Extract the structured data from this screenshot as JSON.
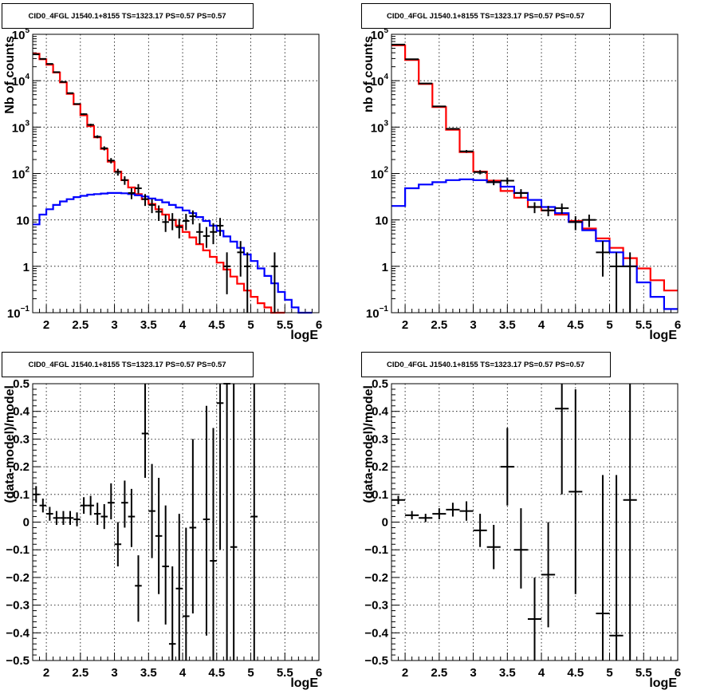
{
  "chart_data": [
    {
      "type": "step-histogram",
      "title": "CID0_4FGL J1540.1+8155 TS=1323.17 PS=0.57 PS=0.57",
      "xlabel": "logE",
      "ylabel": "Nb of counts",
      "xlim": [
        1.8,
        6.0
      ],
      "ylim": [
        0.1,
        100000
      ],
      "yscale": "log",
      "grid": true,
      "x_ticks": [
        "2",
        "2.5",
        "3",
        "3.5",
        "4",
        "4.5",
        "5",
        "5.5",
        "6"
      ],
      "y_ticks": [
        {
          "value": 0.1,
          "base": "10",
          "sup": "−1"
        },
        {
          "value": 1,
          "base": "1",
          "sup": ""
        },
        {
          "value": 10,
          "base": "10",
          "sup": ""
        },
        {
          "value": 100,
          "base": "10",
          "sup": "2"
        },
        {
          "value": 1000,
          "base": "10",
          "sup": "3"
        },
        {
          "value": 10000,
          "base": "10",
          "sup": "4"
        },
        {
          "value": 100000,
          "base": "10",
          "sup": "5"
        }
      ],
      "bin_width": 0.1,
      "series": [
        {
          "color": "#ff0000",
          "x_start": 1.8,
          "values": [
            38000,
            29000,
            22000,
            15000,
            9200,
            5200,
            3100,
            1800,
            1050,
            600,
            340,
            180,
            110,
            72,
            50,
            36,
            28,
            22,
            17,
            13,
            10,
            7.5,
            5.5,
            4.2,
            3.0,
            2.2,
            1.6,
            1.2,
            0.85,
            0.6,
            0.42,
            0.3,
            0.22,
            0.16,
            0.13,
            0.1,
            0.1
          ]
        },
        {
          "color": "#0000ff",
          "x_start": 1.8,
          "values": [
            8,
            13,
            17,
            21,
            25,
            28,
            31,
            33,
            35,
            36,
            37,
            38,
            38,
            37.5,
            36,
            34,
            32,
            29,
            27,
            24,
            21,
            18.5,
            16,
            14,
            11.5,
            9.5,
            7.5,
            5.8,
            4.4,
            3.4,
            2.5,
            1.8,
            1.3,
            0.9,
            0.62,
            0.43,
            0.28,
            0.19,
            0.13,
            0.1,
            0.1
          ]
        }
      ],
      "points": [
        {
          "x": 1.85,
          "y": 37000,
          "ylo": 36600,
          "yhi": 37400
        },
        {
          "x": 1.95,
          "y": 29500,
          "ylo": 29150,
          "yhi": 29850
        },
        {
          "x": 2.05,
          "y": 23000,
          "ylo": 22700,
          "yhi": 23300
        },
        {
          "x": 2.15,
          "y": 15300,
          "ylo": 15050,
          "yhi": 15550
        },
        {
          "x": 2.25,
          "y": 9400,
          "ylo": 9200,
          "yhi": 9600
        },
        {
          "x": 2.35,
          "y": 5400,
          "ylo": 5250,
          "yhi": 5550
        },
        {
          "x": 2.45,
          "y": 3150,
          "ylo": 3050,
          "yhi": 3250
        },
        {
          "x": 2.55,
          "y": 1900,
          "ylo": 1820,
          "yhi": 1980
        },
        {
          "x": 2.65,
          "y": 1120,
          "ylo": 1060,
          "yhi": 1180
        },
        {
          "x": 2.75,
          "y": 620,
          "ylo": 575,
          "yhi": 665
        },
        {
          "x": 2.85,
          "y": 350,
          "ylo": 315,
          "yhi": 385
        },
        {
          "x": 2.95,
          "y": 190,
          "ylo": 165,
          "yhi": 215
        },
        {
          "x": 3.05,
          "y": 108,
          "ylo": 90,
          "yhi": 126
        },
        {
          "x": 3.15,
          "y": 72,
          "ylo": 57,
          "yhi": 87
        },
        {
          "x": 3.25,
          "y": 38,
          "ylo": 28,
          "yhi": 48
        },
        {
          "x": 3.35,
          "y": 48,
          "ylo": 37,
          "yhi": 59
        },
        {
          "x": 3.45,
          "y": 28,
          "ylo": 20,
          "yhi": 36
        },
        {
          "x": 3.55,
          "y": 21,
          "ylo": 14,
          "yhi": 28
        },
        {
          "x": 3.65,
          "y": 15,
          "ylo": 9.5,
          "yhi": 20.5
        },
        {
          "x": 3.75,
          "y": 9,
          "ylo": 5.5,
          "yhi": 13
        },
        {
          "x": 3.85,
          "y": 10,
          "ylo": 6,
          "yhi": 14
        },
        {
          "x": 3.95,
          "y": 7,
          "ylo": 4,
          "yhi": 10.5
        },
        {
          "x": 4.05,
          "y": 9.5,
          "ylo": 6,
          "yhi": 13.5
        },
        {
          "x": 4.15,
          "y": 12,
          "ylo": 8,
          "yhi": 16
        },
        {
          "x": 4.25,
          "y": 5.5,
          "ylo": 3,
          "yhi": 8.5
        },
        {
          "x": 4.35,
          "y": 4.5,
          "ylo": 2.5,
          "yhi": 7
        },
        {
          "x": 4.45,
          "y": 5.5,
          "ylo": 3,
          "yhi": 8.5
        },
        {
          "x": 4.55,
          "y": 7.5,
          "ylo": 4.5,
          "yhi": 11
        },
        {
          "x": 4.65,
          "y": 1.0,
          "ylo": 0.25,
          "yhi": 2.0
        },
        {
          "x": 4.85,
          "y": 2.0,
          "ylo": 0.6,
          "yhi": 3.5
        },
        {
          "x": 4.95,
          "y": 1.0,
          "ylo": 0.1,
          "yhi": 2.0
        },
        {
          "x": 5.35,
          "y": 1.0,
          "ylo": 0.1,
          "yhi": 2.0
        }
      ]
    },
    {
      "type": "step-histogram",
      "title": "CID0_4FGL J1540.1+8155 TS=1323.17 PS=0.57 PS=0.57",
      "xlabel": "logE",
      "ylabel": "nb of counts",
      "xlim": [
        1.8,
        6.0
      ],
      "ylim": [
        0.1,
        100000
      ],
      "yscale": "log",
      "grid": true,
      "x_ticks": [
        "2",
        "2.5",
        "3",
        "3.5",
        "4",
        "4.5",
        "5",
        "5.5",
        "6"
      ],
      "y_ticks": [
        {
          "value": 0.1,
          "base": "10",
          "sup": "−1"
        },
        {
          "value": 1,
          "base": "1",
          "sup": ""
        },
        {
          "value": 10,
          "base": "10",
          "sup": ""
        },
        {
          "value": 100,
          "base": "10",
          "sup": "2"
        },
        {
          "value": 1000,
          "base": "10",
          "sup": "3"
        },
        {
          "value": 10000,
          "base": "10",
          "sup": "4"
        },
        {
          "value": 100000,
          "base": "10",
          "sup": "5"
        }
      ],
      "bin_width": 0.2,
      "series": [
        {
          "color": "#ff0000",
          "x_start": 1.8,
          "values": [
            58000,
            28000,
            8500,
            2700,
            880,
            290,
            110,
            70,
            42,
            30,
            19,
            16,
            13,
            9.5,
            6.5,
            4,
            2.5,
            1.5,
            0.9,
            0.5,
            0.3
          ]
        },
        {
          "color": "#0000ff",
          "x_start": 1.8,
          "values": [
            20,
            48,
            58,
            65,
            72,
            75,
            72,
            65,
            52,
            38,
            27,
            19,
            14,
            9,
            6,
            3.5,
            2,
            1.0,
            0.45,
            0.22,
            0.12
          ]
        }
      ],
      "points": [
        {
          "x": 1.9,
          "y": 60000,
          "ylo": 59000,
          "yhi": 61000
        },
        {
          "x": 2.1,
          "y": 29000,
          "ylo": 28700,
          "yhi": 29300
        },
        {
          "x": 2.3,
          "y": 8700,
          "ylo": 8500,
          "yhi": 8900
        },
        {
          "x": 2.5,
          "y": 2800,
          "ylo": 2700,
          "yhi": 2900
        },
        {
          "x": 2.7,
          "y": 920,
          "ylo": 880,
          "yhi": 960
        },
        {
          "x": 2.9,
          "y": 300,
          "ylo": 280,
          "yhi": 320
        },
        {
          "x": 3.1,
          "y": 107,
          "ylo": 96,
          "yhi": 118
        },
        {
          "x": 3.3,
          "y": 65,
          "ylo": 56,
          "yhi": 74
        },
        {
          "x": 3.5,
          "y": 70,
          "ylo": 58,
          "yhi": 82
        },
        {
          "x": 3.7,
          "y": 38,
          "ylo": 30,
          "yhi": 46
        },
        {
          "x": 3.9,
          "y": 19,
          "ylo": 14,
          "yhi": 24
        },
        {
          "x": 4.1,
          "y": 16,
          "ylo": 12,
          "yhi": 20
        },
        {
          "x": 4.3,
          "y": 18,
          "ylo": 13.5,
          "yhi": 22.5
        },
        {
          "x": 4.5,
          "y": 9,
          "ylo": 6,
          "yhi": 12
        },
        {
          "x": 4.7,
          "y": 10,
          "ylo": 7,
          "yhi": 13
        },
        {
          "x": 4.9,
          "y": 2,
          "ylo": 0.6,
          "yhi": 3.5
        },
        {
          "x": 5.1,
          "y": 1,
          "ylo": 0.1,
          "yhi": 2.0
        },
        {
          "x": 5.3,
          "y": 1,
          "ylo": 0.1,
          "yhi": 2.0
        }
      ]
    },
    {
      "type": "scatter-errorbars",
      "title": "CID0_4FGL J1540.1+8155 TS=1323.17 PS=0.57 PS=0.57",
      "xlabel": "logE",
      "ylabel": "(data-model)/model",
      "xlim": [
        1.8,
        6.0
      ],
      "ylim": [
        -0.5,
        0.5
      ],
      "yscale": "linear",
      "grid": true,
      "x_ticks": [
        "2",
        "2.5",
        "3",
        "3.5",
        "4",
        "4.5",
        "5",
        "5.5",
        "6"
      ],
      "y_ticks": [
        "−0.5",
        "−0.4",
        "−0.3",
        "−0.2",
        "−0.1",
        "0",
        "0.1",
        "0.2",
        "0.3",
        "0.4",
        "0.5"
      ],
      "bin_width": 0.1,
      "points": [
        {
          "x": 1.85,
          "y": 0.1,
          "ylo": 0.07,
          "yhi": 0.13
        },
        {
          "x": 1.95,
          "y": 0.06,
          "ylo": 0.035,
          "yhi": 0.085
        },
        {
          "x": 2.05,
          "y": 0.03,
          "ylo": 0.005,
          "yhi": 0.055
        },
        {
          "x": 2.15,
          "y": 0.015,
          "ylo": -0.01,
          "yhi": 0.04
        },
        {
          "x": 2.25,
          "y": 0.015,
          "ylo": -0.01,
          "yhi": 0.04
        },
        {
          "x": 2.35,
          "y": 0.015,
          "ylo": -0.01,
          "yhi": 0.04
        },
        {
          "x": 2.45,
          "y": 0.01,
          "ylo": -0.015,
          "yhi": 0.035
        },
        {
          "x": 2.55,
          "y": 0.06,
          "ylo": 0.03,
          "yhi": 0.09
        },
        {
          "x": 2.65,
          "y": 0.06,
          "ylo": 0.025,
          "yhi": 0.095
        },
        {
          "x": 2.75,
          "y": 0.03,
          "ylo": -0.01,
          "yhi": 0.07
        },
        {
          "x": 2.85,
          "y": 0.02,
          "ylo": -0.025,
          "yhi": 0.065
        },
        {
          "x": 2.95,
          "y": 0.07,
          "ylo": 0.01,
          "yhi": 0.14
        },
        {
          "x": 3.05,
          "y": -0.08,
          "ylo": -0.16,
          "yhi": 0.0
        },
        {
          "x": 3.15,
          "y": 0.07,
          "ylo": -0.02,
          "yhi": 0.15
        },
        {
          "x": 3.25,
          "y": 0.02,
          "ylo": -0.09,
          "yhi": 0.12
        },
        {
          "x": 3.35,
          "y": -0.23,
          "ylo": -0.36,
          "yhi": -0.12
        },
        {
          "x": 3.45,
          "y": 0.32,
          "ylo": 0.16,
          "yhi": 0.5
        },
        {
          "x": 3.55,
          "y": 0.04,
          "ylo": -0.13,
          "yhi": 0.21
        },
        {
          "x": 3.65,
          "y": -0.05,
          "ylo": -0.26,
          "yhi": 0.16
        },
        {
          "x": 3.75,
          "y": -0.16,
          "ylo": -0.37,
          "yhi": 0.06
        },
        {
          "x": 3.85,
          "y": -0.44,
          "ylo": -0.5,
          "yhi": -0.16
        },
        {
          "x": 3.95,
          "y": -0.24,
          "ylo": -0.5,
          "yhi": 0.03
        },
        {
          "x": 4.05,
          "y": -0.34,
          "ylo": -0.5,
          "yhi": -0.02
        },
        {
          "x": 4.15,
          "y": -0.02,
          "ylo": -0.33,
          "yhi": 0.3
        },
        {
          "x": 4.35,
          "y": 0.01,
          "ylo": -0.41,
          "yhi": 0.42
        },
        {
          "x": 4.45,
          "y": -0.14,
          "ylo": -0.5,
          "yhi": 0.34
        },
        {
          "x": 4.55,
          "y": 0.43,
          "ylo": -0.1,
          "yhi": 0.5
        },
        {
          "x": 4.65,
          "y": 0.5,
          "ylo": -0.5,
          "yhi": 0.5
        },
        {
          "x": 4.75,
          "y": -0.09,
          "ylo": -0.5,
          "yhi": 0.5
        },
        {
          "x": 5.05,
          "y": 0.02,
          "ylo": -0.5,
          "yhi": 0.5
        }
      ]
    },
    {
      "type": "scatter-errorbars",
      "title": "CID0_4FGL J1540.1+8155 TS=1323.17 PS=0.57 PS=0.57",
      "xlabel": "logE",
      "ylabel": "(data-model)/model",
      "xlim": [
        1.8,
        6.0
      ],
      "ylim": [
        -0.5,
        0.5
      ],
      "yscale": "linear",
      "grid": true,
      "x_ticks": [
        "2",
        "2.5",
        "3",
        "3.5",
        "4",
        "4.5",
        "5",
        "5.5",
        "6"
      ],
      "y_ticks": [
        "−0.5",
        "−0.4",
        "−0.3",
        "−0.2",
        "−0.1",
        "0",
        "0.1",
        "0.2",
        "0.3",
        "0.4",
        "0.5"
      ],
      "bin_width": 0.2,
      "points": [
        {
          "x": 1.9,
          "y": 0.08,
          "ylo": 0.065,
          "yhi": 0.095
        },
        {
          "x": 2.1,
          "y": 0.025,
          "ylo": 0.01,
          "yhi": 0.04
        },
        {
          "x": 2.3,
          "y": 0.015,
          "ylo": 0.0,
          "yhi": 0.03
        },
        {
          "x": 2.5,
          "y": 0.03,
          "ylo": 0.01,
          "yhi": 0.05
        },
        {
          "x": 2.7,
          "y": 0.045,
          "ylo": 0.02,
          "yhi": 0.07
        },
        {
          "x": 2.9,
          "y": 0.04,
          "ylo": 0.005,
          "yhi": 0.075
        },
        {
          "x": 3.1,
          "y": -0.03,
          "ylo": -0.09,
          "yhi": 0.03
        },
        {
          "x": 3.3,
          "y": -0.09,
          "ylo": -0.17,
          "yhi": -0.01
        },
        {
          "x": 3.5,
          "y": 0.2,
          "ylo": 0.06,
          "yhi": 0.34
        },
        {
          "x": 3.7,
          "y": -0.1,
          "ylo": -0.24,
          "yhi": 0.05
        },
        {
          "x": 3.9,
          "y": -0.35,
          "ylo": -0.5,
          "yhi": -0.2
        },
        {
          "x": 4.1,
          "y": -0.19,
          "ylo": -0.38,
          "yhi": 0.0
        },
        {
          "x": 4.3,
          "y": 0.41,
          "ylo": 0.1,
          "yhi": 0.5
        },
        {
          "x": 4.5,
          "y": 0.11,
          "ylo": -0.26,
          "yhi": 0.48
        },
        {
          "x": 4.9,
          "y": -0.33,
          "ylo": -0.5,
          "yhi": 0.17
        },
        {
          "x": 5.1,
          "y": -0.41,
          "ylo": -0.5,
          "yhi": 0.17
        },
        {
          "x": 5.3,
          "y": 0.08,
          "ylo": -0.5,
          "yhi": 0.5
        }
      ]
    }
  ]
}
